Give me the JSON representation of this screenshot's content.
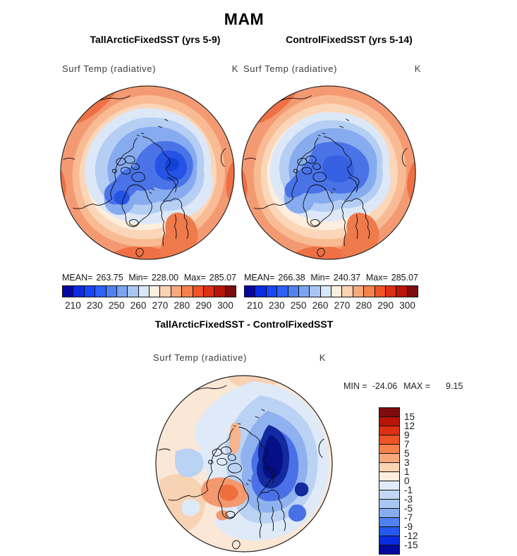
{
  "figure": {
    "season_title": "MAM"
  },
  "panels": {
    "left": {
      "title": "TallArcticFixedSST (yrs 5-9)",
      "field_label": "Surf Temp (radiative)",
      "units": "K",
      "stats": {
        "mean_label": "MEAN=",
        "mean": "263.75",
        "min_label": "Min=",
        "min": "228.00",
        "max_label": "Max=",
        "max": "285.07"
      }
    },
    "right": {
      "title": "ControlFixedSST (yrs 5-14)",
      "field_label": "Surf Temp (radiative)",
      "units": "K",
      "stats": {
        "mean_label": "MEAN=",
        "mean": "266.38",
        "min_label": "Min=",
        "min": "240.37",
        "max_label": "Max=",
        "max": "285.07"
      }
    },
    "diff": {
      "title": "TallArcticFixedSST - ControlFixedSST",
      "field_label": "Surf Temp (radiative)",
      "units": "K",
      "stats": {
        "min_label": "MIN =",
        "min": "-24.06",
        "max_label": "MAX =",
        "max": "9.15"
      }
    }
  },
  "temp_colorbar": {
    "colors": [
      "#04089e",
      "#0b2be1",
      "#1747fa",
      "#2e61f6",
      "#5081f0",
      "#7ba4f0",
      "#a9c6f3",
      "#d8e7f8",
      "#fdeedd",
      "#fbd3b5",
      "#f8a97c",
      "#f5814d",
      "#ee5426",
      "#dc2f16",
      "#b81508",
      "#7e0b0e"
    ],
    "tick_labels": [
      "210",
      "230",
      "250",
      "260",
      "270",
      "280",
      "290",
      "300"
    ],
    "tick_boundary_indices": [
      1,
      3,
      5,
      7,
      9,
      11,
      13,
      15
    ]
  },
  "diff_colorbar": {
    "colors": [
      "#7e0b0e",
      "#b81508",
      "#dc2f16",
      "#ee5426",
      "#f5814d",
      "#f8a97c",
      "#fbd3b5",
      "#fdeedd",
      "#e2ecf8",
      "#c3d7f4",
      "#a9c6f3",
      "#86abef",
      "#5081f0",
      "#2558ec",
      "#0b2be1",
      "#04089e"
    ],
    "tick_labels": [
      "15",
      "12",
      "9",
      "7",
      "5",
      "3",
      "1",
      "0",
      "-1",
      "-3",
      "-5",
      "-7",
      "-9",
      "-12",
      "-15"
    ],
    "tick_boundary_indices": [
      1,
      2,
      3,
      4,
      5,
      6,
      7,
      8,
      9,
      10,
      11,
      12,
      13,
      14,
      15
    ]
  },
  "chart_data": [
    {
      "type": "heatmap",
      "subtype": "filled-contour polar stereographic map",
      "season": "MAM",
      "title": "TallArcticFixedSST (yrs 5-9)",
      "variable": "Surf Temp (radiative)",
      "units": "K",
      "contour_levels": [
        210,
        220,
        230,
        240,
        250,
        255,
        260,
        265,
        270,
        275,
        280,
        285,
        290,
        295,
        300
      ],
      "colorbar_tick_labels": [
        210,
        230,
        250,
        260,
        270,
        280,
        290,
        300
      ],
      "stats": {
        "mean": 263.75,
        "min": 228.0,
        "max": 285.07
      },
      "legend_position": "bottom",
      "notes": "Cold (blue) pool centered on Arctic Ocean, warm (red/orange) ring at lower latitudes"
    },
    {
      "type": "heatmap",
      "subtype": "filled-contour polar stereographic map",
      "season": "MAM",
      "title": "ControlFixedSST (yrs 5-14)",
      "variable": "Surf Temp (radiative)",
      "units": "K",
      "contour_levels": [
        210,
        220,
        230,
        240,
        250,
        255,
        260,
        265,
        270,
        275,
        280,
        285,
        290,
        295,
        300
      ],
      "colorbar_tick_labels": [
        210,
        230,
        250,
        260,
        270,
        280,
        290,
        300
      ],
      "stats": {
        "mean": 266.38,
        "min": 240.37,
        "max": 285.07
      },
      "legend_position": "bottom",
      "notes": "Similar pattern, slightly warmer Arctic cold pool than TallArcticFixedSST"
    },
    {
      "type": "heatmap",
      "subtype": "filled-contour polar stereographic difference map",
      "season": "MAM",
      "title": "TallArcticFixedSST - ControlFixedSST",
      "variable": "Surf Temp (radiative)",
      "units": "K",
      "contour_levels": [
        -15,
        -12,
        -9,
        -7,
        -5,
        -3,
        -1,
        0,
        1,
        3,
        5,
        7,
        9,
        12,
        15
      ],
      "stats": {
        "min": -24.06,
        "max": 9.15
      },
      "legend_position": "right",
      "notes": "Strong negative anomaly (dark blue, < -15 K) over Siberian sector right of pole; weak positive anomaly (orange, +3 to +7 K) near Greenland"
    }
  ]
}
